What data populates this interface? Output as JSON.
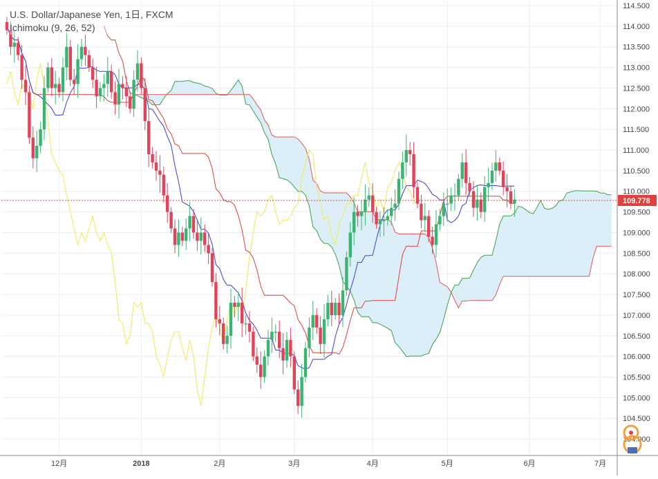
{
  "chart_data": {
    "type": "candlestick",
    "title": "U.S. Dollar/Japanese Yen, 1日, FXCM",
    "indicator_label": "Ichimoku (9, 26, 52)",
    "last_price_label": "109.778",
    "ylim": [
      103.6,
      114.6
    ],
    "y_ticks": [
      "114.500",
      "114.000",
      "113.500",
      "113.000",
      "112.500",
      "112.000",
      "111.500",
      "111.000",
      "110.500",
      "110.000",
      "109.500",
      "109.000",
      "108.500",
      "108.000",
      "107.500",
      "107.000",
      "106.500",
      "106.000",
      "105.500",
      "105.000",
      "104.500",
      "104.000"
    ],
    "y_tick_values": [
      114.5,
      114.0,
      113.5,
      113.0,
      112.5,
      112.0,
      111.5,
      111.0,
      110.5,
      110.0,
      109.5,
      109.0,
      108.5,
      108.0,
      107.5,
      107.0,
      106.5,
      106.0,
      105.5,
      105.0,
      104.5,
      104.0
    ],
    "x_ticks": [
      {
        "label": "12月",
        "bar": 14
      },
      {
        "label": "2018",
        "bar": 36
      },
      {
        "label": "2月",
        "bar": 57
      },
      {
        "label": "3月",
        "bar": 77
      },
      {
        "label": "4月",
        "bar": 98
      },
      {
        "label": "5月",
        "bar": 118
      },
      {
        "label": "6月",
        "bar": 140
      },
      {
        "label": "7月",
        "bar": 159
      }
    ],
    "closes": [
      113.9,
      113.5,
      113.6,
      113.3,
      112.7,
      112.4,
      111.3,
      110.8,
      111.1,
      111.5,
      112.5,
      113.0,
      112.5,
      112.6,
      112.4,
      113.0,
      113.5,
      112.7,
      112.6,
      113.2,
      113.5,
      113.3,
      113.0,
      112.7,
      112.3,
      112.5,
      112.6,
      112.9,
      112.4,
      112.1,
      112.6,
      112.5,
      112.3,
      112.0,
      112.7,
      113.1,
      112.5,
      111.7,
      110.9,
      110.7,
      110.5,
      110.4,
      109.9,
      109.5,
      109.1,
      108.7,
      109.0,
      108.8,
      109.1,
      109.4,
      109.0,
      108.8,
      109.0,
      108.7,
      108.5,
      107.8,
      106.9,
      106.8,
      106.3,
      106.5,
      107.3,
      107.2,
      107.3,
      106.8,
      106.8,
      106.6,
      106.0,
      105.8,
      105.5,
      106.0,
      106.4,
      106.6,
      106.6,
      106.2,
      105.9,
      106.4,
      106.0,
      105.2,
      104.8,
      105.5,
      106.2,
      106.7,
      107.0,
      106.7,
      106.3,
      106.9,
      107.3,
      107.0,
      107.3,
      107.0,
      107.6,
      108.4,
      109.0,
      109.5,
      109.4,
      109.5,
      109.8,
      109.9,
      109.5,
      109.2,
      109.3,
      109.3,
      109.4,
      109.6,
      109.7,
      110.3,
      110.7,
      111.0,
      110.9,
      110.1,
      109.7,
      109.3,
      109.4,
      108.9,
      108.7,
      109.2,
      109.4,
      109.7,
      109.7,
      109.9,
      109.9,
      110.3,
      110.7,
      110.2,
      110.0,
      109.6,
      109.8,
      109.5,
      110.1,
      110.2,
      110.5,
      110.7,
      110.5,
      110.1,
      110.0,
      109.7,
      109.8
    ],
    "series": [
      {
        "name": "Tenkan-sen",
        "color": "#3a3ad6"
      },
      {
        "name": "Kijun-sen",
        "color": "#e03c3c"
      },
      {
        "name": "Chikou Span",
        "color": "#f0ec6a"
      },
      {
        "name": "Senkou Span A",
        "color": "#3e9e4a"
      },
      {
        "name": "Senkou Span B",
        "color": "#e05555"
      }
    ],
    "colors": {
      "up": "#3cb371",
      "down": "#e0445a",
      "cloud": "#d6ecf7",
      "grid": "#eceef0",
      "axis": "#555555",
      "price_line": "#e04040"
    },
    "grid": true
  }
}
